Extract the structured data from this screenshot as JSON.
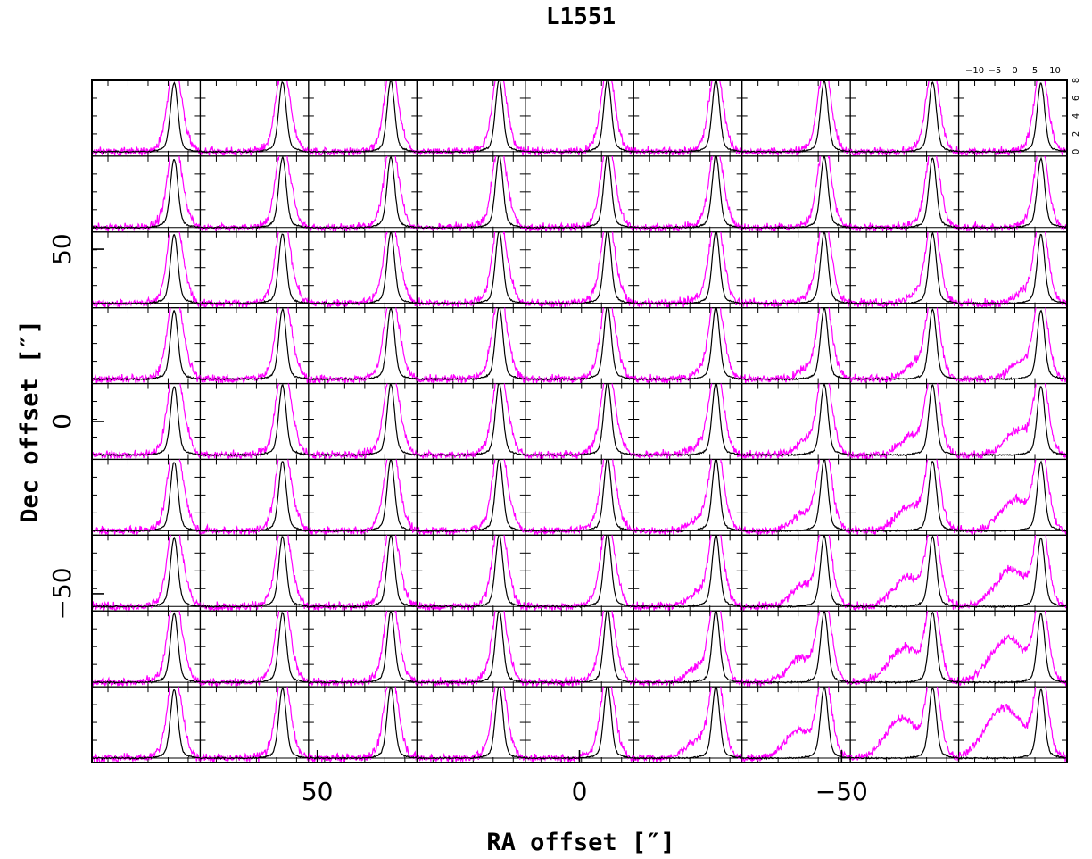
{
  "chart_data": {
    "type": "line",
    "title": "L1551",
    "xlabel": "RA offset  [″]",
    "ylabel": "Dec offset  [″]",
    "grid_columns": 9,
    "grid_rows": 9,
    "ra_range": [
      93,
      -93
    ],
    "dec_range": [
      -99,
      99
    ],
    "ra_ticks": [
      50,
      0,
      -50
    ],
    "ra_tick_labels": [
      "50",
      "0",
      "−50"
    ],
    "dec_ticks": [
      50,
      0,
      -50
    ],
    "dec_tick_labels": [
      "50",
      "0",
      "−50"
    ],
    "panel_velocity_range": [
      -14,
      13
    ],
    "panel_intensity_range": [
      -0.5,
      8
    ],
    "panel_velocity_ticks": [
      -10,
      -5,
      0,
      5,
      10
    ],
    "panel_velocity_tick_labels": [
      "−10",
      "−5",
      "0",
      "5",
      "10"
    ],
    "panel_intensity_ticks": [
      0,
      2,
      4,
      6,
      8
    ],
    "panel_intensity_tick_labels": [
      "0",
      "2",
      "4",
      "6",
      "8"
    ],
    "line_center_velocity": 6.5,
    "series": [
      {
        "color": "#000000",
        "description": "narrow reference line, similar at all positions",
        "peak": 7.5,
        "width": 0.9
      },
      {
        "color": "#ff00ff",
        "description": "broad line with wing; blue wing grows toward south-west",
        "peak_min": 7.5,
        "peak_max": 9.5
      }
    ]
  },
  "colors": {
    "accent_magenta": "#ff00ff",
    "axis": "#000000"
  }
}
